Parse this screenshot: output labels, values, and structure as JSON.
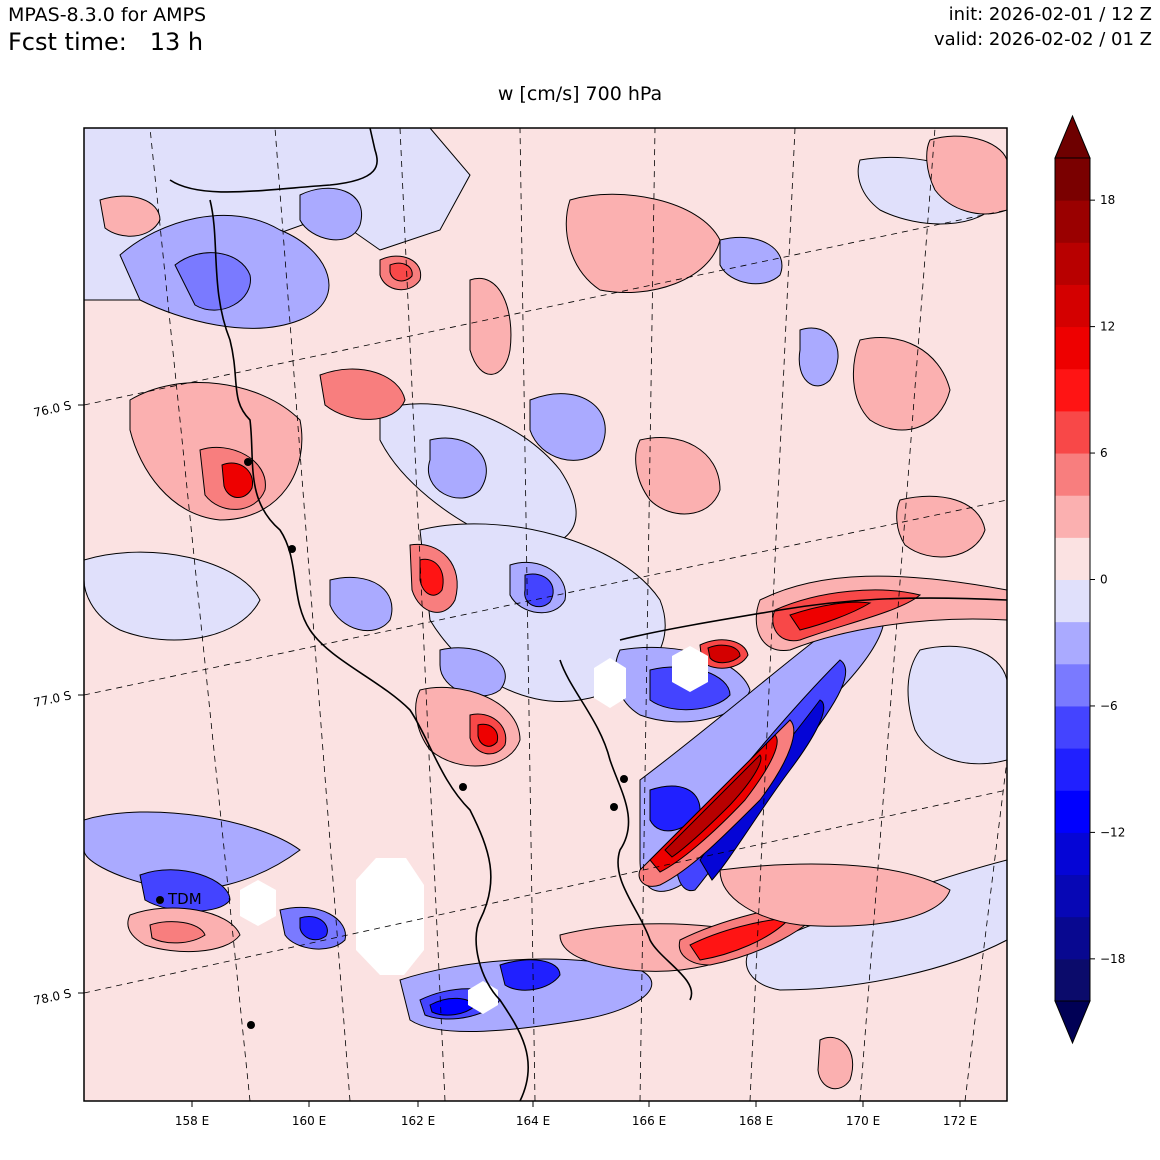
{
  "header": {
    "model": "MPAS-8.3.0 for AMPS",
    "fcst_label": "Fcst time:",
    "fcst_value": "13 h",
    "init": "init: 2026-02-01 / 12 Z",
    "valid": "valid: 2026-02-02 / 01 Z"
  },
  "plot_title": "w [cm/s]    700 hPa",
  "lon_labels": [
    "158 E",
    "160 E",
    "162 E",
    "164 E",
    "166 E",
    "168 E",
    "170 E",
    "172 E"
  ],
  "lat_labels": [
    "76.0 S",
    "77.0 S",
    "78.0 S"
  ],
  "colorbar": {
    "tick_labels": [
      "18",
      "12",
      "6",
      "0",
      "−6",
      "−12",
      "−18"
    ],
    "levels": [
      -20,
      -18,
      -16,
      -14,
      -12,
      -10,
      -8,
      -6,
      -4,
      -2,
      0,
      2,
      4,
      6,
      8,
      10,
      12,
      14,
      16,
      18,
      20
    ],
    "colors": [
      "#0b0b6b",
      "#080890",
      "#0707b5",
      "#0505d6",
      "#0000ff",
      "#2020ff",
      "#4444ff",
      "#7a7aff",
      "#aaaaff",
      "#e0e0fb",
      "#fbe2e2",
      "#fbb0b0",
      "#f87e7e",
      "#f84848",
      "#ff1414",
      "#ee0000",
      "#d40000",
      "#b80000",
      "#9a0000",
      "#7a0000"
    ],
    "under_color": "#000055",
    "over_color": "#6e0000"
  },
  "station_label": "TDM",
  "colors": {
    "background_pos": "#fbe2e2",
    "background_neg": "#e0e0fb"
  }
}
